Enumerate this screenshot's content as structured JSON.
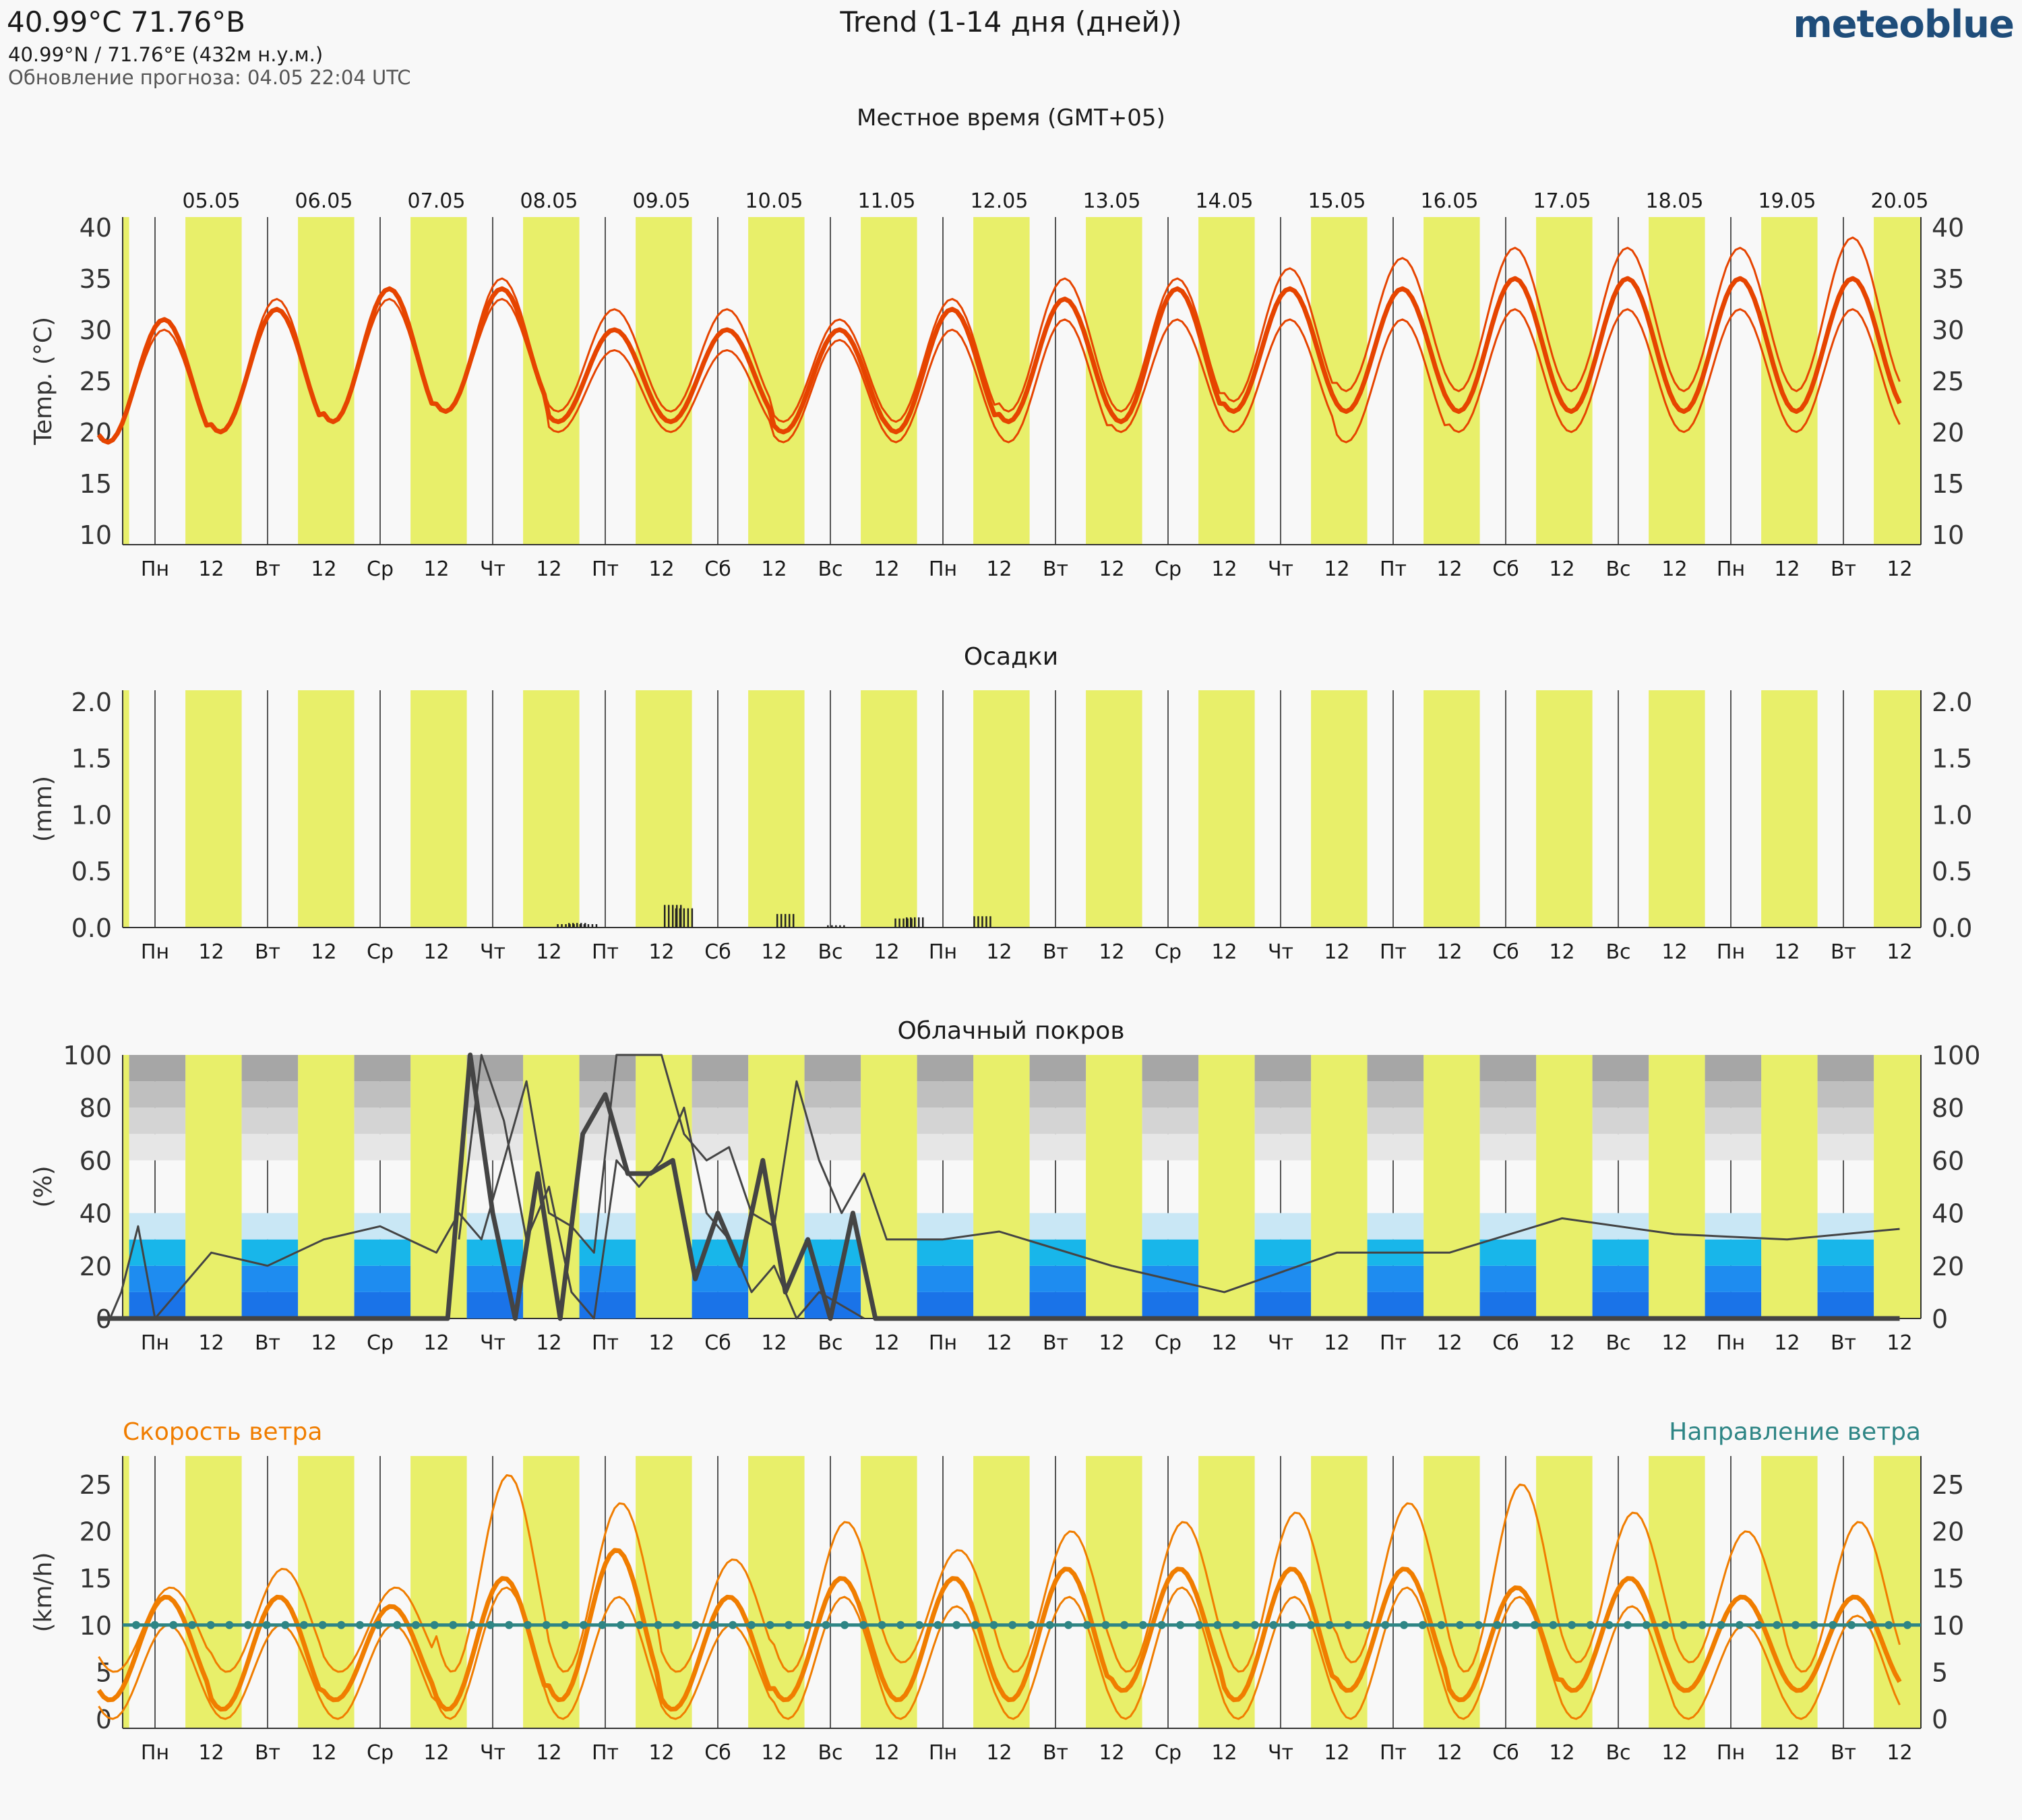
{
  "header": {
    "location": "40.99°С 71.76°В",
    "coords": "40.99°N / 71.76°E (432м н.у.м.)",
    "update": "Обновление прогноза: 04.05 22:04 UTC",
    "title": "Trend (1-14 дня (дней))",
    "logo": "meteoblue"
  },
  "local_time_label": "Местное время (GMT+05)",
  "dates": [
    "05.05",
    "06.05",
    "07.05",
    "08.05",
    "09.05",
    "10.05",
    "11.05",
    "12.05",
    "13.05",
    "14.05",
    "15.05",
    "16.05",
    "17.05",
    "18.05",
    "19.05",
    "20.05"
  ],
  "weekdays": [
    "Пн",
    "Вт",
    "Ср",
    "Чт",
    "Пт",
    "Сб",
    "Вс",
    "Пн",
    "Вт",
    "Ср",
    "Чт",
    "Пт",
    "Сб",
    "Вс",
    "Пн",
    "Вт"
  ],
  "noon_label": "12",
  "colors": {
    "day": "#e8ef6a",
    "night": "#f8f8f8",
    "temp": "#e64400",
    "wind_speed": "#f07d00",
    "wind_dir": "#2e8585",
    "cloud_line": "#444444",
    "low_cloud": [
      "#1a73e8",
      "#1e8cf0",
      "#18b6ea",
      "#c9e7f5"
    ],
    "high_cloud": [
      "#a6a6a6",
      "#bfbfbf",
      "#d4d4d4",
      "#e6e6e6"
    ]
  },
  "chart_data": [
    {
      "type": "line",
      "title": "",
      "ylabel": "Temp. (°C)",
      "ylim": [
        9,
        41
      ],
      "yticks": [
        10,
        15,
        20,
        25,
        30,
        35,
        40
      ],
      "series": [
        {
          "daily_min": [
            19,
            20,
            21,
            22,
            21,
            21,
            20,
            20,
            21,
            21,
            22,
            22,
            22,
            22,
            22,
            22
          ],
          "daily_max": [
            31,
            32,
            34,
            34,
            30,
            30,
            30,
            32,
            33,
            34,
            34,
            34,
            35,
            35,
            35,
            35
          ]
        },
        {
          "daily_min": [
            19,
            20,
            21,
            22,
            20,
            20,
            19,
            19,
            19,
            20,
            20,
            19,
            20,
            20,
            20,
            20
          ],
          "daily_max": [
            30,
            32,
            33,
            33,
            28,
            28,
            29,
            30,
            31,
            31,
            31,
            31,
            32,
            32,
            32,
            32
          ]
        },
        {
          "daily_min": [
            19,
            20,
            21,
            22,
            22,
            22,
            21,
            21,
            22,
            22,
            23,
            24,
            24,
            24,
            24,
            24
          ],
          "daily_max": [
            31,
            33,
            34,
            35,
            32,
            32,
            31,
            33,
            35,
            35,
            36,
            37,
            38,
            38,
            38,
            39
          ]
        }
      ]
    },
    {
      "type": "bar",
      "title": "Осадки",
      "ylabel": "(mm)",
      "ylim": [
        0,
        2.1
      ],
      "yticks": [
        "0.0",
        "0.5",
        "1.0",
        "1.5",
        "2.0"
      ],
      "events": [
        {
          "day": 4.15,
          "value": 0.03
        },
        {
          "day": 4.25,
          "value": 0.04
        },
        {
          "day": 4.35,
          "value": 0.03
        },
        {
          "day": 5.1,
          "value": 0.2
        },
        {
          "day": 5.2,
          "value": 0.17
        },
        {
          "day": 6.1,
          "value": 0.12
        },
        {
          "day": 6.55,
          "value": 0.02
        },
        {
          "day": 7.15,
          "value": 0.08
        },
        {
          "day": 7.25,
          "value": 0.09
        },
        {
          "day": 7.85,
          "value": 0.1
        }
      ]
    },
    {
      "type": "area",
      "title": "Облачный покров",
      "ylabel": "(%)",
      "ylim": [
        0,
        100
      ],
      "yticks": [
        0,
        20,
        40,
        60,
        80,
        100
      ],
      "series": [
        {
          "name": "",
          "x": [
            0.1,
            0.2,
            0.35,
            0.5,
            1,
            1.5,
            2,
            2.5,
            3,
            3.2,
            3.4,
            3.6,
            3.8,
            4,
            4.2,
            4.4,
            4.6,
            4.8,
            5,
            5.2,
            5.4,
            5.6,
            5.8,
            6,
            6.2,
            6.4,
            6.6,
            6.8,
            7,
            7.2,
            7.5,
            8,
            9,
            10,
            11,
            12,
            13,
            14,
            15,
            16
          ],
          "values": [
            0,
            10,
            35,
            0,
            25,
            20,
            30,
            35,
            25,
            40,
            30,
            60,
            90,
            40,
            35,
            25,
            100,
            100,
            100,
            70,
            60,
            65,
            40,
            35,
            90,
            60,
            40,
            55,
            30,
            30,
            30,
            33,
            20,
            10,
            25,
            25,
            38,
            32,
            30,
            34
          ]
        },
        {
          "name": "",
          "x": [
            0,
            3,
            3.1,
            3.3,
            3.5,
            3.7,
            3.9,
            4.1,
            4.3,
            4.5,
            4.7,
            4.9,
            5.1,
            5.3,
            5.5,
            5.7,
            5.9,
            6.1,
            6.3,
            6.5,
            6.7,
            6.9,
            7,
            8,
            16
          ],
          "values": [
            0,
            0,
            0,
            100,
            40,
            0,
            55,
            0,
            70,
            85,
            55,
            55,
            60,
            15,
            40,
            20,
            60,
            10,
            30,
            0,
            40,
            0,
            0,
            0,
            0
          ]
        },
        {
          "name": "",
          "x": [
            3.2,
            3.4,
            3.6,
            3.8,
            4,
            4.2,
            4.4,
            4.6,
            4.8,
            5,
            5.2,
            5.4,
            5.6,
            5.8,
            6,
            6.2,
            6.4,
            6.6,
            6.8
          ],
          "values": [
            30,
            100,
            75,
            30,
            50,
            10,
            0,
            60,
            50,
            60,
            80,
            40,
            30,
            10,
            20,
            0,
            10,
            5,
            0
          ]
        }
      ],
      "layers": {
        "high": "0-40 / 50-100 grey",
        "low": "blue bands"
      }
    },
    {
      "type": "line",
      "title": "",
      "ylabel": "(km/h)",
      "ylim": [
        -1,
        28
      ],
      "yticks": [
        0,
        5,
        10,
        15,
        20,
        25
      ],
      "legend_left": "Скорость ветра",
      "legend_right": "Направление ветра",
      "series": [
        {
          "name": "Скорость ветра",
          "daily_min": [
            2,
            1,
            2,
            1,
            2,
            1,
            2,
            2,
            2,
            3,
            2,
            3,
            2,
            3,
            3,
            3
          ],
          "daily_max": [
            13,
            13,
            12,
            15,
            18,
            13,
            15,
            15,
            16,
            16,
            16,
            16,
            14,
            15,
            13,
            13
          ]
        },
        {
          "name": "",
          "daily_min": [
            0,
            0,
            0,
            0,
            0,
            0,
            0,
            0,
            0,
            0,
            0,
            0,
            0,
            0,
            0,
            0
          ],
          "daily_max": [
            10,
            10,
            10,
            14,
            13,
            10,
            13,
            12,
            13,
            14,
            13,
            14,
            13,
            12,
            10,
            11
          ]
        },
        {
          "name": "",
          "daily_min": [
            5,
            5,
            5,
            5,
            5,
            5,
            5,
            6,
            5,
            5,
            5,
            6,
            5,
            6,
            6,
            5
          ],
          "daily_max": [
            14,
            16,
            14,
            26,
            23,
            17,
            21,
            18,
            20,
            21,
            22,
            23,
            25,
            22,
            20,
            21
          ]
        }
      ]
    }
  ]
}
